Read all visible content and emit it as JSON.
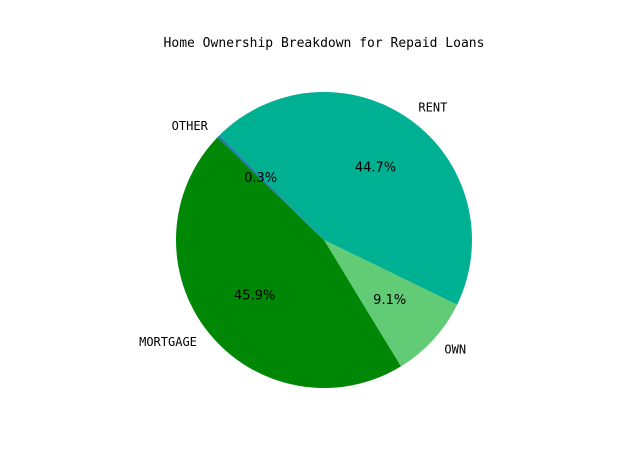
{
  "chart_data": {
    "type": "pie",
    "title": "Home Ownership Breakdown for Repaid Loans",
    "slices": [
      {
        "label": "RENT",
        "value": 44.7,
        "pct_label": "44.7%",
        "color": "#00b092"
      },
      {
        "label": "OWN",
        "value": 9.1,
        "pct_label": "9.1%",
        "color": "#62cb76"
      },
      {
        "label": "MORTGAGE",
        "value": 45.9,
        "pct_label": "45.9%",
        "color": "#008705"
      },
      {
        "label": "OTHER",
        "value": 0.3,
        "pct_label": "0.3%",
        "color": "#1f77b4"
      }
    ],
    "start_angle_deg": 135,
    "direction": "clockwise"
  }
}
